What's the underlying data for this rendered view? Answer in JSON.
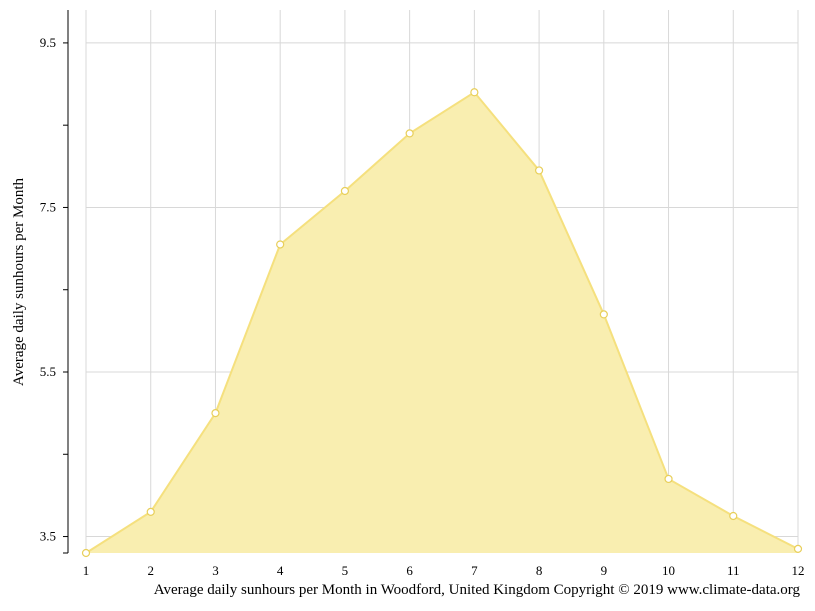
{
  "chart_data": {
    "type": "area",
    "title": "",
    "xlabel": "",
    "ylabel": "Average daily sunhours per Month",
    "categories": [
      "1",
      "2",
      "3",
      "4",
      "5",
      "6",
      "7",
      "8",
      "9",
      "10",
      "11",
      "12"
    ],
    "series": [
      {
        "values": [
          3.3,
          3.8,
          5.0,
          7.05,
          7.7,
          8.4,
          8.9,
          7.95,
          6.2,
          4.2,
          3.75,
          3.35
        ]
      }
    ],
    "ylim": [
      3.3,
      9.9
    ],
    "yticks": [
      "3.5",
      "5.5",
      "7.5",
      "9.5"
    ],
    "yticks_values": [
      3.5,
      5.5,
      7.5,
      9.5
    ],
    "grid": true,
    "colors": {
      "fill": "#f9eeb0",
      "line": "#f5e07e",
      "marker_fill": "#ffffff",
      "marker_stroke": "#e8cf5a",
      "grid": "#d8d8d8"
    },
    "caption": "Average daily sunhours per Month in Woodford, United Kingdom Copyright © 2019 www.climate-data.org"
  }
}
